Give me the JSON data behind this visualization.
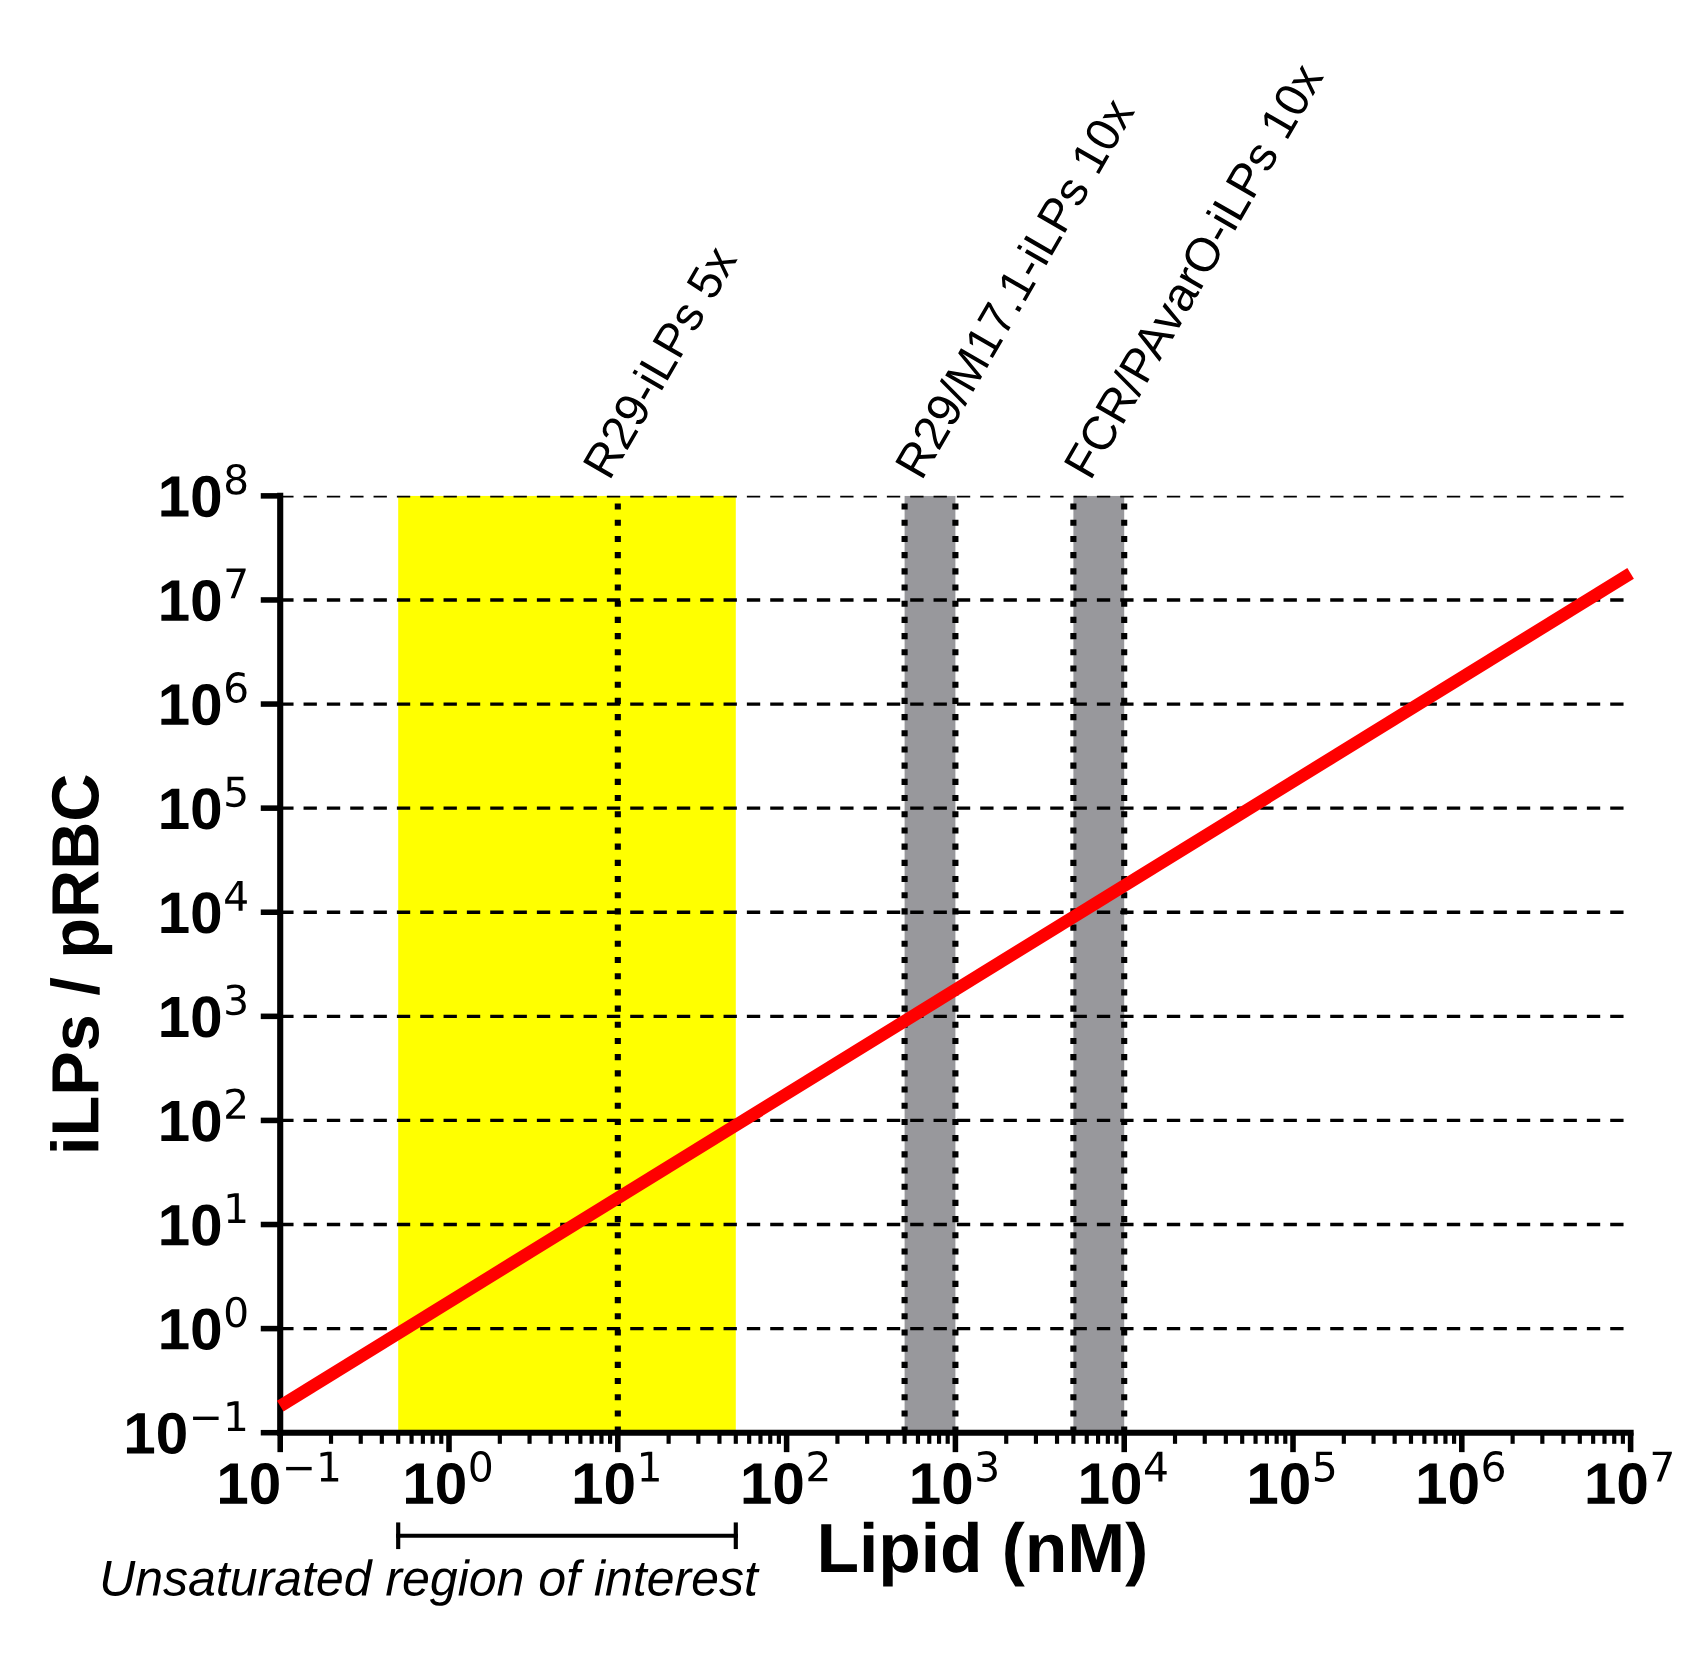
{
  "chart_data": {
    "type": "line",
    "xlabel": "Lipid (nM)",
    "ylabel": "iLPs / pRBC",
    "log": "xy",
    "x": [
      0.1,
      10000000
    ],
    "series": [
      {
        "color": "#ff0000",
        "values": [
          0.18,
          18000000
        ]
      }
    ],
    "xlim": [
      0.1,
      10000000
    ],
    "ylim": [
      0.1,
      100000000
    ],
    "xticks": [
      {
        "value": 0.1,
        "label": "10$^{−1}$"
      },
      {
        "value": 1,
        "label": "10$^{0}$"
      },
      {
        "value": 10,
        "label": "10$^{1}$"
      },
      {
        "value": 100,
        "label": "10$^{2}$"
      },
      {
        "value": 1000,
        "label": "10$^{3}$"
      },
      {
        "value": 10000,
        "label": "10$^{4}$"
      },
      {
        "value": 100000,
        "label": "10$^{5}$"
      },
      {
        "value": 1000000,
        "label": "10$^{6}$"
      },
      {
        "value": 10000000,
        "label": "10$^{7}$"
      }
    ],
    "yticks": [
      {
        "value": 0.1,
        "label": "10$^{−1}$"
      },
      {
        "value": 1,
        "label": "10$^{0}$"
      },
      {
        "value": 10,
        "label": "10$^{1}$"
      },
      {
        "value": 100,
        "label": "10$^{2}$"
      },
      {
        "value": 1000,
        "label": "10$^{3}$"
      },
      {
        "value": 10000,
        "label": "10$^{4}$"
      },
      {
        "value": 100000,
        "label": "10$^{5}$"
      },
      {
        "value": 1000000,
        "label": "10$^{6}$"
      },
      {
        "value": 10000000,
        "label": "10$^{7}$"
      },
      {
        "value": 100000000,
        "label": "10$^{8}$"
      }
    ],
    "grid": "y",
    "marker": "none",
    "line_style": "solid",
    "bands": [
      {
        "axis": "x",
        "from": 0.5,
        "to": 50,
        "color": "#ffff00"
      },
      {
        "axis": "x",
        "from": 500,
        "to": 1000,
        "color": "#98989c",
        "label": "R29/M17.1-iLPs 10x"
      },
      {
        "axis": "x",
        "from": 5000,
        "to": 10000,
        "color": "#98989c",
        "label": "FCR/PAvarO-iLPs 10x"
      }
    ],
    "ref_lines": [
      {
        "axis": "x",
        "value": 10,
        "label": "R29-iLPs 5x",
        "line_style": "dotted",
        "color": "#000000"
      },
      {
        "axis": "x",
        "value": 500,
        "line_style": "dotted",
        "color": "#000000"
      },
      {
        "axis": "x",
        "value": 1000,
        "line_style": "dotted",
        "color": "#000000"
      },
      {
        "axis": "x",
        "value": 5000,
        "line_style": "dotted",
        "color": "#000000"
      },
      {
        "axis": "x",
        "value": 10000,
        "line_style": "dotted",
        "color": "#000000"
      }
    ],
    "annotations": [
      "Unsaturated region of interest"
    ]
  }
}
